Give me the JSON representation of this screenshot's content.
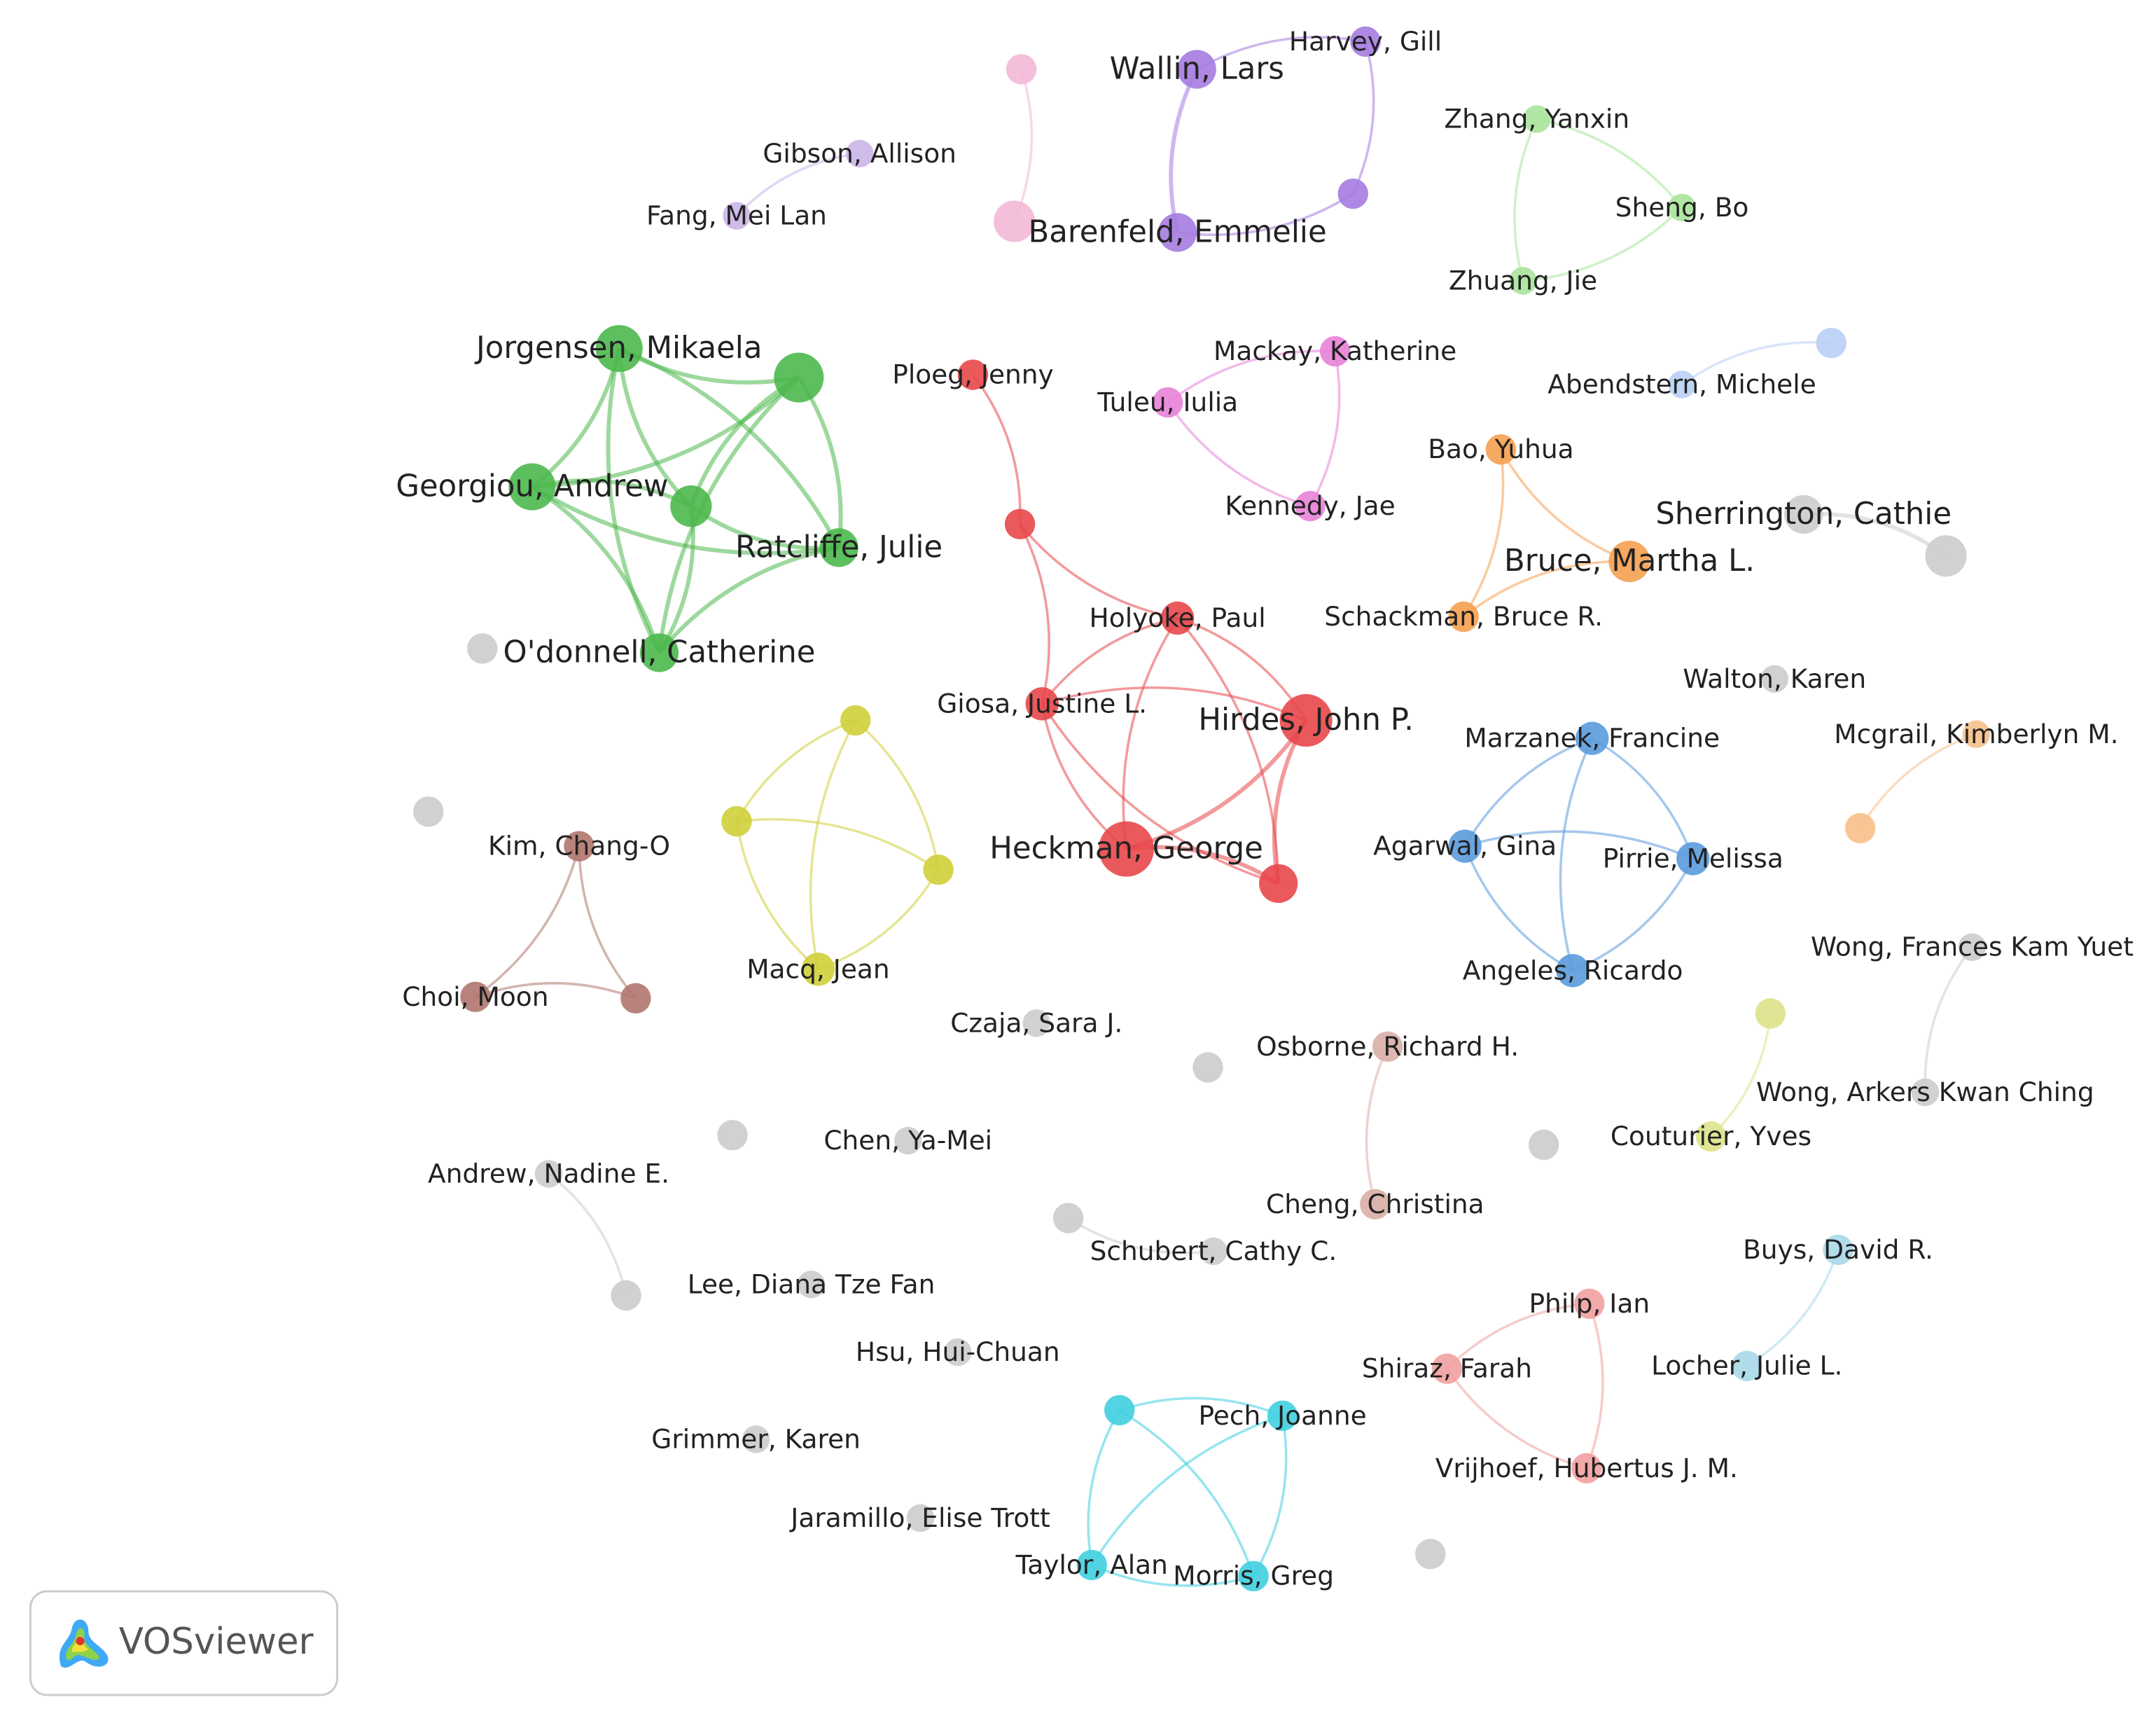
{
  "nodes": [
    {
      "label": "Wallin, Lars"
    },
    {
      "label": "Harvey, Gill"
    },
    {
      "label": "Barenfeld, Emmelie"
    },
    {
      "label": "Gibson, Allison"
    },
    {
      "label": "Fang, Mei Lan"
    },
    {
      "label": "Zhang, Yanxin"
    },
    {
      "label": "Sheng, Bo"
    },
    {
      "label": "Zhuang, Jie"
    },
    {
      "label": "Jorgensen, Mikaela"
    },
    {
      "label": "Georgiou, Andrew"
    },
    {
      "label": "Ratcliffe, Julie"
    },
    {
      "label": "O'donnell, Catherine"
    },
    {
      "label": "Ploeg, Jenny"
    },
    {
      "label": "Mackay, Katherine"
    },
    {
      "label": "Tuleu, Iulia"
    },
    {
      "label": "Kennedy, Jae"
    },
    {
      "label": "Abendstern, Michele"
    },
    {
      "label": "Bao, Yuhua"
    },
    {
      "label": "Sherrington, Cathie"
    },
    {
      "label": "Bruce, Martha L."
    },
    {
      "label": "Schackman, Bruce R."
    },
    {
      "label": "Holyoke, Paul"
    },
    {
      "label": "Giosa, Justine L."
    },
    {
      "label": "Hirdes, John P."
    },
    {
      "label": "Walton, Karen"
    },
    {
      "label": "Marzanek, Francine"
    },
    {
      "label": "Mcgrail, Kimberlyn M."
    },
    {
      "label": "Kim, Chang-O"
    },
    {
      "label": "Heckman, George"
    },
    {
      "label": "Agarwal, Gina"
    },
    {
      "label": "Pirrie, Melissa"
    },
    {
      "label": "Macq, Jean"
    },
    {
      "label": "Choi, Moon"
    },
    {
      "label": "Angeles, Ricardo"
    },
    {
      "label": "Wong, Frances Kam Yuet"
    },
    {
      "label": "Czaja, Sara J."
    },
    {
      "label": "Osborne, Richard H."
    },
    {
      "label": "Wong, Arkers Kwan Ching"
    },
    {
      "label": "Couturier, Yves"
    },
    {
      "label": "Chen, Ya-Mei"
    },
    {
      "label": "Andrew, Nadine E."
    },
    {
      "label": "Cheng, Christina"
    },
    {
      "label": "Schubert, Cathy C."
    },
    {
      "label": "Buys, David R."
    },
    {
      "label": "Lee, Diana Tze Fan"
    },
    {
      "label": "Philp, Ian"
    },
    {
      "label": "Hsu, Hui-Chuan"
    },
    {
      "label": "Shiraz, Farah"
    },
    {
      "label": "Locher, Julie L."
    },
    {
      "label": "Pech, Joanne"
    },
    {
      "label": "Grimmer, Karen"
    },
    {
      "label": "Vrijhoef, Hubertus J. M."
    },
    {
      "label": "Jaramillo, Elise Trott"
    },
    {
      "label": "Taylor, Alan"
    },
    {
      "label": "Morris, Greg"
    }
  ],
  "logo": {
    "text": "VOSviewer"
  }
}
